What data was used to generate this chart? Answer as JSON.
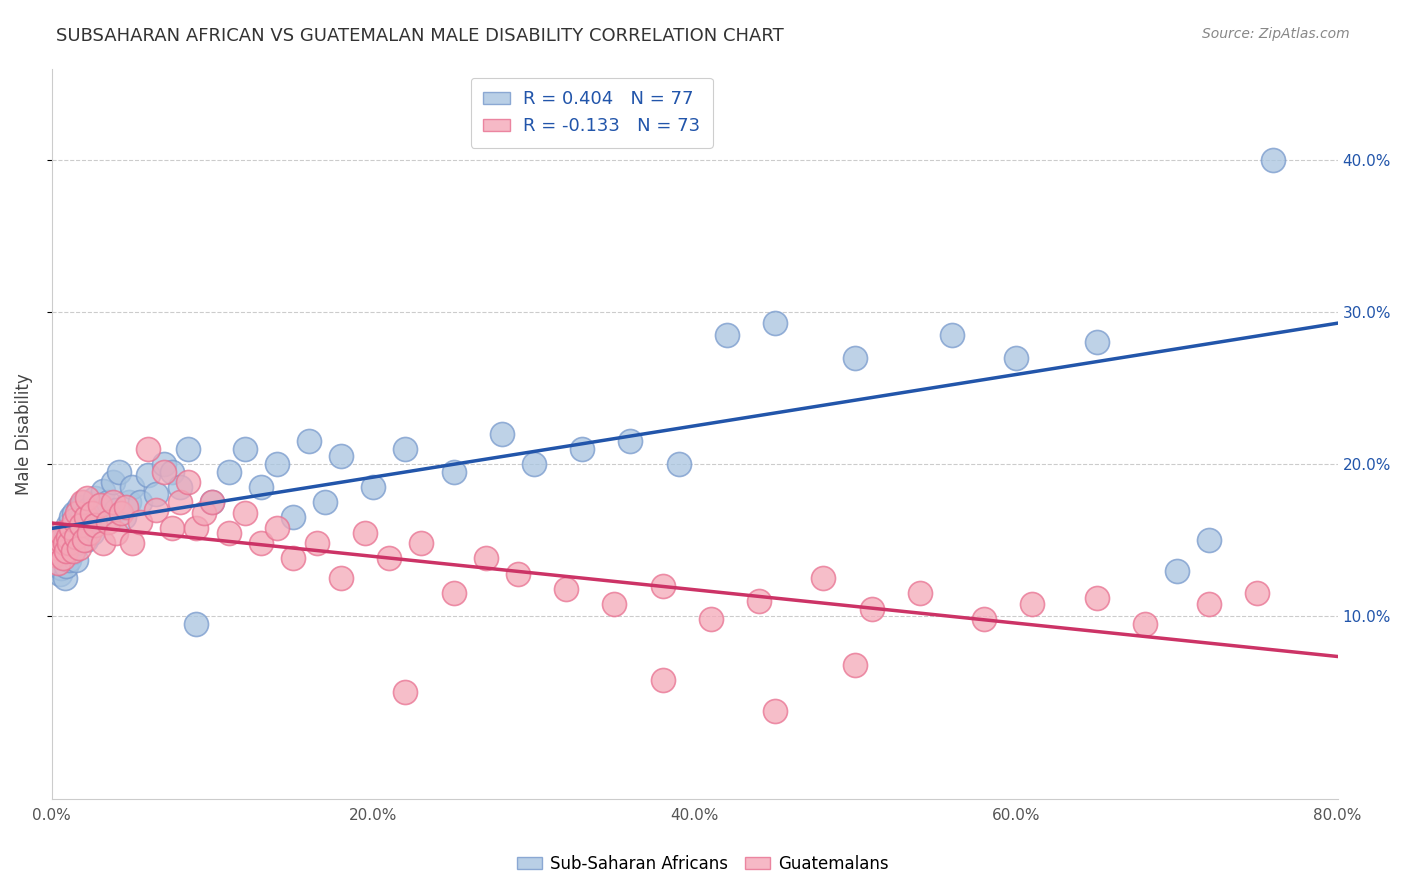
{
  "title": "SUBSAHARAN AFRICAN VS GUATEMALAN MALE DISABILITY CORRELATION CHART",
  "source": "Source: ZipAtlas.com",
  "ylabel": "Male Disability",
  "xlim": [
    0.0,
    0.8
  ],
  "ylim": [
    -0.02,
    0.46
  ],
  "xticks": [
    0.0,
    0.2,
    0.4,
    0.6,
    0.8
  ],
  "xtick_labels": [
    "0.0%",
    "20.0%",
    "40.0%",
    "60.0%",
    "80.0%"
  ],
  "ytick_labels": [
    "10.0%",
    "20.0%",
    "30.0%",
    "40.0%"
  ],
  "yticks": [
    0.1,
    0.2,
    0.3,
    0.4
  ],
  "blue_color": "#a8c4e0",
  "pink_color": "#f4a8b8",
  "blue_edge_color": "#7799cc",
  "pink_edge_color": "#e87090",
  "blue_line_color": "#2255AA",
  "pink_line_color": "#CC3366",
  "blue_R": 0.404,
  "blue_N": 77,
  "pink_R": -0.133,
  "pink_N": 73,
  "legend_label_blue": "Sub-Saharan Africans",
  "legend_label_pink": "Guatemalans",
  "blue_x": [
    0.002,
    0.003,
    0.004,
    0.005,
    0.005,
    0.006,
    0.006,
    0.007,
    0.007,
    0.008,
    0.008,
    0.009,
    0.009,
    0.01,
    0.01,
    0.011,
    0.011,
    0.012,
    0.012,
    0.013,
    0.013,
    0.014,
    0.015,
    0.015,
    0.016,
    0.017,
    0.018,
    0.019,
    0.02,
    0.021,
    0.022,
    0.023,
    0.025,
    0.027,
    0.03,
    0.032,
    0.035,
    0.038,
    0.04,
    0.042,
    0.045,
    0.048,
    0.05,
    0.055,
    0.06,
    0.065,
    0.07,
    0.075,
    0.08,
    0.085,
    0.09,
    0.1,
    0.11,
    0.12,
    0.13,
    0.14,
    0.15,
    0.16,
    0.17,
    0.18,
    0.2,
    0.22,
    0.25,
    0.28,
    0.3,
    0.33,
    0.36,
    0.39,
    0.42,
    0.45,
    0.5,
    0.56,
    0.6,
    0.65,
    0.7,
    0.72,
    0.76
  ],
  "blue_y": [
    0.135,
    0.14,
    0.145,
    0.15,
    0.128,
    0.132,
    0.155,
    0.142,
    0.138,
    0.148,
    0.125,
    0.152,
    0.133,
    0.143,
    0.16,
    0.137,
    0.147,
    0.155,
    0.165,
    0.142,
    0.158,
    0.168,
    0.137,
    0.162,
    0.148,
    0.172,
    0.155,
    0.165,
    0.175,
    0.15,
    0.17,
    0.16,
    0.155,
    0.178,
    0.165,
    0.182,
    0.175,
    0.188,
    0.17,
    0.195,
    0.165,
    0.175,
    0.185,
    0.175,
    0.193,
    0.18,
    0.2,
    0.195,
    0.185,
    0.21,
    0.095,
    0.175,
    0.195,
    0.21,
    0.185,
    0.2,
    0.165,
    0.215,
    0.175,
    0.205,
    0.185,
    0.21,
    0.195,
    0.22,
    0.2,
    0.21,
    0.215,
    0.2,
    0.285,
    0.293,
    0.27,
    0.285,
    0.27,
    0.28,
    0.13,
    0.15,
    0.4
  ],
  "pink_x": [
    0.002,
    0.003,
    0.004,
    0.005,
    0.006,
    0.007,
    0.008,
    0.009,
    0.01,
    0.011,
    0.012,
    0.013,
    0.014,
    0.015,
    0.016,
    0.017,
    0.018,
    0.019,
    0.02,
    0.021,
    0.022,
    0.023,
    0.025,
    0.027,
    0.03,
    0.032,
    0.035,
    0.038,
    0.04,
    0.043,
    0.046,
    0.05,
    0.055,
    0.06,
    0.065,
    0.07,
    0.075,
    0.08,
    0.085,
    0.09,
    0.095,
    0.1,
    0.11,
    0.12,
    0.13,
    0.14,
    0.15,
    0.165,
    0.18,
    0.195,
    0.21,
    0.23,
    0.25,
    0.27,
    0.29,
    0.32,
    0.35,
    0.38,
    0.41,
    0.44,
    0.48,
    0.51,
    0.54,
    0.58,
    0.61,
    0.65,
    0.68,
    0.72,
    0.75,
    0.5,
    0.38,
    0.22,
    0.45
  ],
  "pink_y": [
    0.14,
    0.145,
    0.135,
    0.15,
    0.155,
    0.138,
    0.148,
    0.143,
    0.152,
    0.148,
    0.158,
    0.143,
    0.163,
    0.152,
    0.168,
    0.145,
    0.16,
    0.175,
    0.15,
    0.165,
    0.178,
    0.155,
    0.168,
    0.16,
    0.173,
    0.148,
    0.162,
    0.175,
    0.155,
    0.168,
    0.172,
    0.148,
    0.162,
    0.21,
    0.17,
    0.195,
    0.158,
    0.175,
    0.188,
    0.158,
    0.168,
    0.175,
    0.155,
    0.168,
    0.148,
    0.158,
    0.138,
    0.148,
    0.125,
    0.155,
    0.138,
    0.148,
    0.115,
    0.138,
    0.128,
    0.118,
    0.108,
    0.12,
    0.098,
    0.11,
    0.125,
    0.105,
    0.115,
    0.098,
    0.108,
    0.112,
    0.095,
    0.108,
    0.115,
    0.068,
    0.058,
    0.05,
    0.038
  ]
}
